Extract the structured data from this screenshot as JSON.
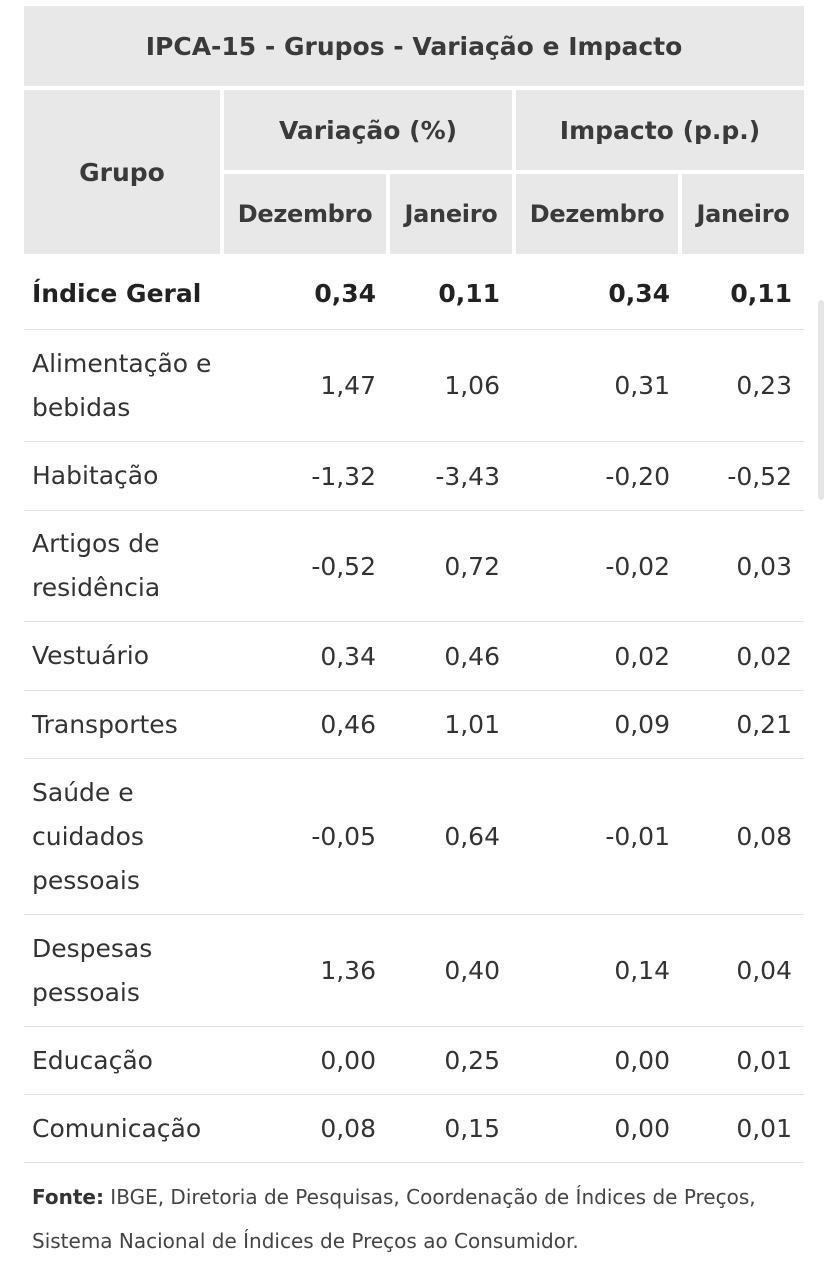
{
  "title": "IPCA-15 - Grupos - Variação e Impacto",
  "header": {
    "grupo": "Grupo",
    "variacao": "Variação (%)",
    "impacto": "Impacto (p.p.)",
    "dez1": "Dezembro",
    "jan1": "Janeiro",
    "dez2": "Dezembro",
    "jan2": "Janeiro"
  },
  "rows": [
    {
      "label": "Índice Geral",
      "v": [
        "0,34",
        "0,11",
        "0,34",
        "0,11"
      ]
    },
    {
      "label": "Alimentação e bebidas",
      "v": [
        "1,47",
        "1,06",
        "0,31",
        "0,23"
      ]
    },
    {
      "label": "Habitação",
      "v": [
        "-1,32",
        "-3,43",
        "-0,20",
        "-0,52"
      ]
    },
    {
      "label": "Artigos de residência",
      "v": [
        "-0,52",
        "0,72",
        "-0,02",
        "0,03"
      ]
    },
    {
      "label": "Vestuário",
      "v": [
        "0,34",
        "0,46",
        "0,02",
        "0,02"
      ]
    },
    {
      "label": "Transportes",
      "v": [
        "0,46",
        "1,01",
        "0,09",
        "0,21"
      ]
    },
    {
      "label": "Saúde e cuidados pessoais",
      "v": [
        "-0,05",
        "0,64",
        "-0,01",
        "0,08"
      ]
    },
    {
      "label": "Despesas pessoais",
      "v": [
        "1,36",
        "0,40",
        "0,14",
        "0,04"
      ]
    },
    {
      "label": "Educação",
      "v": [
        "0,00",
        "0,25",
        "0,00",
        "0,01"
      ]
    },
    {
      "label": "Comunicação",
      "v": [
        "0,08",
        "0,15",
        "0,00",
        "0,01"
      ]
    }
  ],
  "footer": {
    "prefix": "Fonte:",
    "text": " IBGE, Diretoria de Pesquisas, Coordenação de Índices de Preços, Sistema Nacional de Índices de Preços ao Consumidor."
  }
}
